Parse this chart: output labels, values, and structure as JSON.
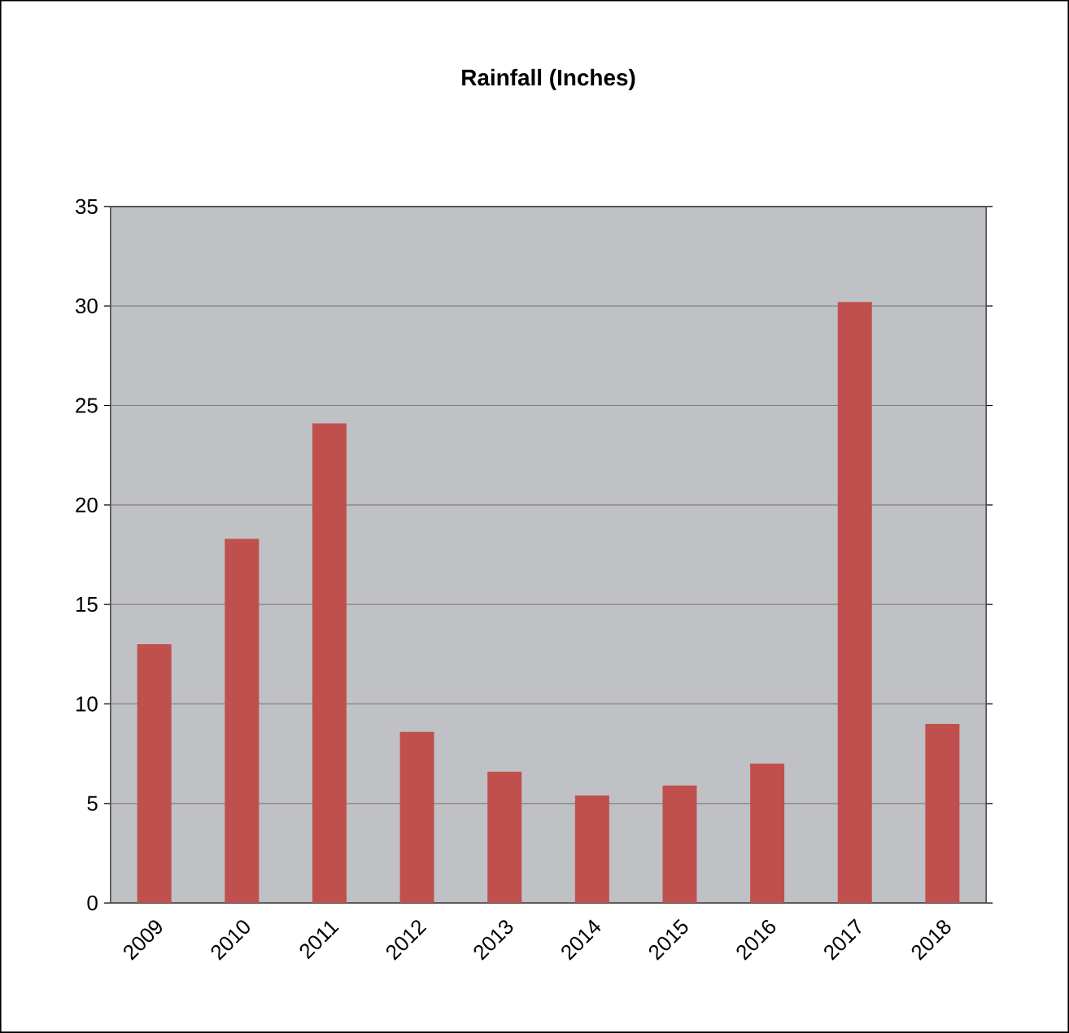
{
  "chart_data": {
    "type": "bar",
    "title": "Rainfall (Inches)",
    "categories": [
      "2009",
      "2010",
      "2011",
      "2012",
      "2013",
      "2014",
      "2015",
      "2016",
      "2017",
      "2018"
    ],
    "values": [
      13.0,
      18.3,
      24.1,
      8.6,
      6.6,
      5.4,
      5.9,
      7.0,
      30.2,
      9.0
    ],
    "color": "#c0504d",
    "ylim": [
      0,
      35
    ],
    "yticks": [
      0,
      5,
      10,
      15,
      20,
      25,
      30,
      35
    ],
    "grid": "y"
  }
}
